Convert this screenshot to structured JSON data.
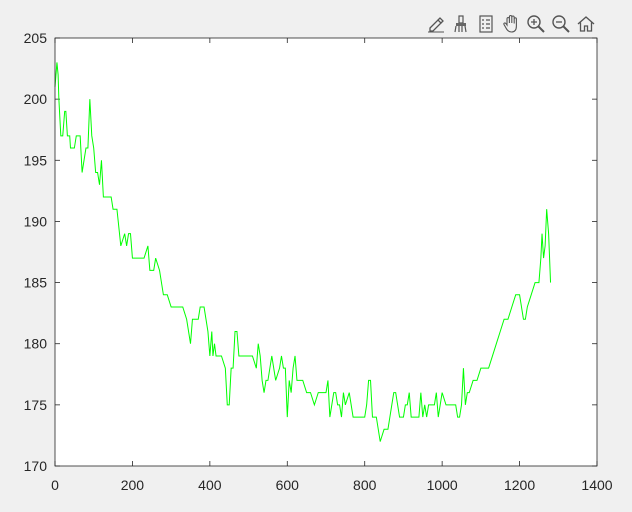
{
  "toolbar": {
    "tools": [
      {
        "name": "edit-plot-icon"
      },
      {
        "name": "brush-icon"
      },
      {
        "name": "legend-icon"
      },
      {
        "name": "pan-icon"
      },
      {
        "name": "zoom-in-icon"
      },
      {
        "name": "zoom-out-icon"
      },
      {
        "name": "home-icon"
      }
    ]
  },
  "colors": {
    "line": "#00ff00",
    "axes_bg": "#ffffff",
    "figure_bg": "#f0f0f0",
    "axis": "#262626"
  },
  "chart_data": {
    "type": "line",
    "title": "",
    "xlabel": "",
    "ylabel": "",
    "xlim": [
      0,
      1400
    ],
    "ylim": [
      170,
      205
    ],
    "xticks": [
      0,
      200,
      400,
      600,
      800,
      1000,
      1200,
      1400
    ],
    "yticks": [
      170,
      175,
      180,
      185,
      190,
      195,
      200,
      205
    ],
    "grid": false,
    "series": [
      {
        "x": [
          0,
          5,
          8,
          10,
          15,
          20,
          25,
          28,
          32,
          38,
          40,
          45,
          50,
          55,
          60,
          65,
          70,
          80,
          85,
          90,
          95,
          100,
          105,
          110,
          115,
          120,
          125,
          130,
          135,
          140,
          145,
          150,
          155,
          160,
          170,
          180,
          185,
          190,
          195,
          200,
          210,
          220,
          230,
          240,
          245,
          250,
          255,
          260,
          270,
          275,
          280,
          285,
          290,
          300,
          310,
          320,
          330,
          340,
          350,
          355,
          360,
          370,
          375,
          380,
          385,
          390,
          395,
          400,
          405,
          408,
          412,
          416,
          420,
          430,
          440,
          445,
          450,
          455,
          460,
          465,
          470,
          475,
          480,
          490,
          500,
          510,
          520,
          525,
          530,
          535,
          540,
          545,
          550,
          555,
          560,
          570,
          580,
          585,
          590,
          595,
          600,
          605,
          610,
          615,
          620,
          625,
          630,
          640,
          650,
          660,
          670,
          680,
          690,
          700,
          705,
          710,
          715,
          720,
          725,
          730,
          735,
          740,
          745,
          750,
          760,
          770,
          780,
          790,
          800,
          805,
          810,
          815,
          820,
          830,
          835,
          840,
          850,
          860,
          865,
          870,
          875,
          880,
          890,
          900,
          905,
          910,
          915,
          920,
          930,
          940,
          945,
          950,
          955,
          960,
          965,
          970,
          980,
          985,
          990,
          1000,
          1010,
          1020,
          1030,
          1035,
          1040,
          1045,
          1050,
          1055,
          1060,
          1065,
          1070,
          1080,
          1090,
          1100,
          1110,
          1120,
          1130,
          1140,
          1150,
          1160,
          1170,
          1180,
          1190,
          1200,
          1205,
          1210,
          1215,
          1220,
          1230,
          1240,
          1250,
          1255,
          1258,
          1262,
          1266,
          1270,
          1275,
          1280
        ],
        "y": [
          201,
          203,
          202,
          200,
          197,
          197,
          199,
          199,
          197,
          197,
          196,
          196,
          196,
          197,
          197,
          197,
          194,
          196,
          196,
          200,
          197,
          196,
          194,
          194,
          193,
          195,
          192,
          192,
          192,
          192,
          192,
          191,
          191,
          191,
          188,
          189,
          188,
          189,
          189,
          187,
          187,
          187,
          187,
          188,
          186,
          186,
          186,
          187,
          186,
          185,
          184,
          184,
          184,
          183,
          183,
          183,
          183,
          182,
          180,
          182,
          182,
          182,
          183,
          183,
          183,
          182,
          181,
          179,
          181,
          179,
          180,
          179,
          179,
          179,
          178,
          175,
          175,
          178,
          178,
          181,
          181,
          179,
          179,
          179,
          179,
          179,
          178,
          180,
          179,
          177,
          176,
          177,
          177,
          178,
          179,
          177,
          178,
          179,
          178,
          178,
          174,
          177,
          176,
          178,
          179,
          177,
          177,
          177,
          176,
          176,
          175,
          176,
          176,
          176,
          177,
          174,
          175,
          176,
          176,
          175,
          175,
          174,
          176,
          175,
          176,
          174,
          174,
          174,
          174,
          175,
          177,
          177,
          174,
          174,
          173,
          172,
          173,
          173,
          174,
          175,
          176,
          176,
          174,
          174,
          175,
          175,
          176,
          174,
          174,
          174,
          176,
          174,
          175,
          174,
          175,
          175,
          175,
          176,
          174,
          176,
          175,
          175,
          175,
          175,
          174,
          174,
          175,
          178,
          175,
          176,
          176,
          177,
          177,
          178,
          178,
          178,
          179,
          180,
          181,
          182,
          182,
          183,
          184,
          184,
          183,
          182,
          182,
          183,
          184,
          185,
          185,
          187,
          189,
          187,
          188,
          191,
          189,
          185
        ]
      }
    ]
  }
}
